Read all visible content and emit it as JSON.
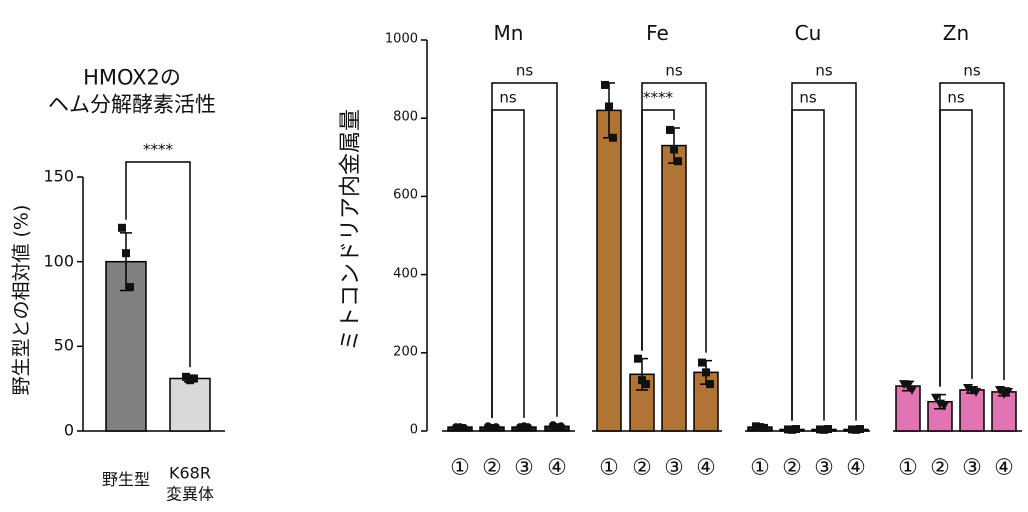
{
  "chart_data": [
    {
      "type": "bar",
      "title": "HMOX2の\nヘム分解酵素活性",
      "y_label": "野生型との相対値 (%)",
      "ylim": [
        0,
        150
      ],
      "yticks": [
        0,
        50,
        100,
        150
      ],
      "groups": [
        {
          "categories": [
            "野生型",
            "K68R\n変異体"
          ],
          "colors": [
            "#808080",
            "#d9d9d9"
          ],
          "marker": "square",
          "values": [
            100,
            31
          ],
          "errors": [
            17,
            2
          ],
          "points": [
            [
              120,
              105,
              85
            ],
            [
              32,
              30,
              31
            ]
          ],
          "comparisons": [
            {
              "between": [
                "野生型",
                "K68R\n変異体"
              ],
              "label": "****"
            }
          ]
        }
      ]
    },
    {
      "type": "bar",
      "y_label": "ミトコンドリア内金属量",
      "ylim": [
        0,
        1000
      ],
      "yticks": [
        0,
        200,
        400,
        600,
        800,
        1000
      ],
      "groups": [
        {
          "name": "Mn",
          "categories": [
            "①",
            "②",
            "③",
            "④"
          ],
          "colors": [
            "#222222",
            "#222222",
            "#222222",
            "#222222"
          ],
          "marker": "circle",
          "values": [
            10,
            10,
            10,
            12
          ],
          "errors": [
            3,
            3,
            3,
            4
          ],
          "points": [
            [
              10,
              10,
              8
            ],
            [
              12,
              8,
              10
            ],
            [
              10,
              12,
              10
            ],
            [
              15,
              10,
              12
            ]
          ],
          "comparisons": [
            {
              "between": [
                "②",
                "③"
              ],
              "label": "ns"
            },
            {
              "between": [
                "②",
                "④"
              ],
              "label": "ns"
            }
          ]
        },
        {
          "name": "Fe",
          "categories": [
            "①",
            "②",
            "③",
            "④"
          ],
          "colors": [
            "#b07434",
            "#b07434",
            "#b07434",
            "#b07434"
          ],
          "marker": "square",
          "values": [
            820,
            145,
            730,
            150
          ],
          "errors": [
            70,
            40,
            45,
            30
          ],
          "points": [
            [
              885,
              830,
              750
            ],
            [
              185,
              130,
              120
            ],
            [
              770,
              720,
              690
            ],
            [
              175,
              150,
              120
            ]
          ],
          "comparisons": [
            {
              "between": [
                "②",
                "③"
              ],
              "label": "****"
            },
            {
              "between": [
                "②",
                "④"
              ],
              "label": "ns"
            }
          ]
        },
        {
          "name": "Cu",
          "categories": [
            "①",
            "②",
            "③",
            "④"
          ],
          "colors": [
            "#222222",
            "#222222",
            "#222222",
            "#222222"
          ],
          "marker": "square",
          "values": [
            10,
            4,
            4,
            4
          ],
          "errors": [
            2,
            2,
            2,
            2
          ],
          "points": [
            [
              12,
              10,
              8
            ],
            [
              4,
              3,
              5
            ],
            [
              4,
              3,
              5
            ],
            [
              4,
              3,
              5
            ]
          ],
          "comparisons": [
            {
              "between": [
                "②",
                "③"
              ],
              "label": "ns"
            },
            {
              "between": [
                "②",
                "④"
              ],
              "label": "ns"
            }
          ]
        },
        {
          "name": "Zn",
          "categories": [
            "①",
            "②",
            "③",
            "④"
          ],
          "colors": [
            "#e274b4",
            "#e274b4",
            "#e274b4",
            "#e274b4"
          ],
          "marker": "triangle",
          "values": [
            115,
            75,
            105,
            100
          ],
          "errors": [
            12,
            18,
            8,
            10
          ],
          "points": [
            [
              120,
              115,
              105
            ],
            [
              85,
              70,
              65
            ],
            [
              110,
              105,
              100
            ],
            [
              105,
              95,
              100
            ]
          ],
          "comparisons": [
            {
              "between": [
                "②",
                "③"
              ],
              "label": "ns"
            },
            {
              "between": [
                "②",
                "④"
              ],
              "label": "ns"
            }
          ]
        }
      ]
    }
  ]
}
